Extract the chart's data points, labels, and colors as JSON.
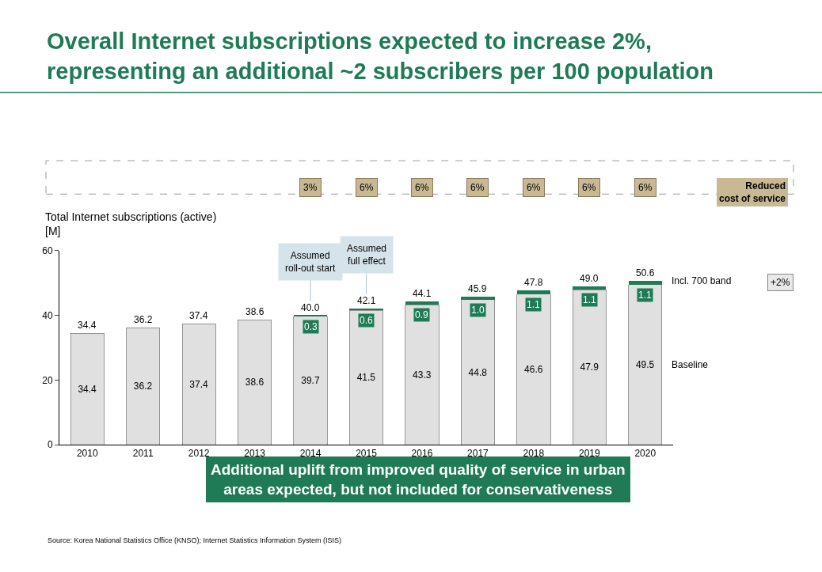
{
  "chart_data": {
    "type": "bar",
    "stacked": true,
    "title": "Overall Internet subscriptions expected to increase 2%,\nrepresenting an additional ~2 subscribers per 100 population",
    "ylabel": "Total Internet subscriptions (active)\n[M]",
    "categories": [
      "2010",
      "2011",
      "2012",
      "2013",
      "2014",
      "2015",
      "2016",
      "2017",
      "2018",
      "2019",
      "2020"
    ],
    "series": [
      {
        "name": "Baseline",
        "color": "#e0e0e0",
        "values": [
          34.4,
          36.2,
          37.4,
          38.6,
          39.7,
          41.5,
          43.3,
          44.8,
          46.6,
          47.9,
          49.5
        ]
      },
      {
        "name": "Incl. 700 band",
        "color": "#1e7b55",
        "values": [
          null,
          null,
          null,
          null,
          0.3,
          0.6,
          0.9,
          1.0,
          1.1,
          1.1,
          1.1
        ],
        "value_labels": [
          null,
          null,
          null,
          null,
          "0.3",
          "0.6",
          "0.9",
          "1.0",
          "1.1",
          "1.1",
          "1.1"
        ]
      }
    ],
    "totals": [
      "34.4",
      "36.2",
      "37.4",
      "38.6",
      "40.0",
      "42.1",
      "44.1",
      "45.9",
      "47.8",
      "49.0",
      "50.6"
    ],
    "data_labels": true,
    "ylim": [
      0,
      60
    ],
    "yticks": [
      0,
      20,
      40,
      60
    ],
    "legend": "right",
    "annotations": [
      "3%",
      "6%",
      "6%",
      "6%",
      "6%",
      "6%",
      "6%",
      "Reduced\ncost of service",
      {
        "text": "Assumed\nroll-out start",
        "x": "2014",
        "y": 40.0
      },
      {
        "text": "Assumed\nfull effect",
        "x": "2015",
        "y": 42.1
      },
      "+2%",
      "Additional uplift from improved quality of service in urban\nareas expected, but not included for conservativeness",
      "Source: Korea National Statistics Office (KNSO); Internet Statistics Information System (ISIS)"
    ]
  }
}
